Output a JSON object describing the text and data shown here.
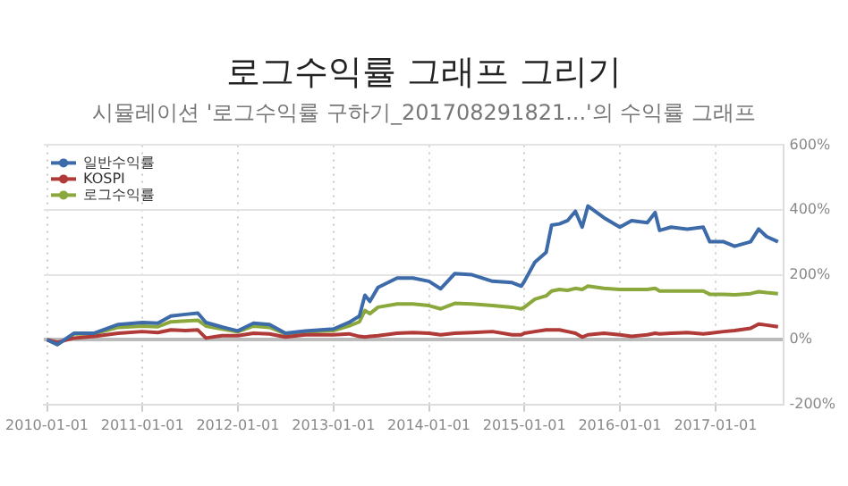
{
  "chart_data": {
    "type": "line",
    "title": "로그수익률 그래프 그리기",
    "subtitle": "시뮬레이션 '로그수익률 구하기_201708291821...'의 수익률 그래프",
    "x": [
      "2010-01-01",
      "2010-02-10",
      "2010-04-15",
      "2010-07-01",
      "2010-10-01",
      "2011-01-01",
      "2011-03-01",
      "2011-04-20",
      "2011-06-15",
      "2011-08-01",
      "2011-09-01",
      "2011-11-01",
      "2012-01-01",
      "2012-03-01",
      "2012-05-01",
      "2012-07-01",
      "2012-09-15",
      "2013-01-01",
      "2013-03-01",
      "2013-04-10",
      "2013-05-01",
      "2013-05-20",
      "2013-06-20",
      "2013-09-01",
      "2013-11-01",
      "2014-01-01",
      "2014-02-15",
      "2014-04-10",
      "2014-06-15",
      "2014-09-01",
      "2014-11-15",
      "2014-12-20",
      "2015-01-01",
      "2015-02-10",
      "2015-03-25",
      "2015-04-15",
      "2015-05-15",
      "2015-06-15",
      "2015-07-15",
      "2015-08-10",
      "2015-09-01",
      "2015-11-01",
      "2016-01-01",
      "2016-02-15",
      "2016-04-15",
      "2016-05-15",
      "2016-06-01",
      "2016-07-15",
      "2016-09-15",
      "2016-11-15",
      "2016-12-10",
      "2017-02-01",
      "2017-03-15",
      "2017-05-15",
      "2017-06-15",
      "2017-07-15",
      "2017-08-28"
    ],
    "series": [
      {
        "name": "일반수익률",
        "color": "#3d6aa8",
        "values": [
          0,
          -15,
          20,
          20,
          47,
          53,
          51,
          73,
          78,
          82,
          53,
          39,
          27,
          51,
          47,
          20,
          27,
          33,
          53,
          73,
          137,
          118,
          161,
          190,
          190,
          180,
          157,
          204,
          200,
          180,
          176,
          165,
          180,
          239,
          269,
          353,
          357,
          367,
          396,
          347,
          412,
          376,
          347,
          367,
          361,
          392,
          337,
          347,
          341,
          347,
          302,
          302,
          288,
          302,
          341,
          318,
          302
        ]
      },
      {
        "name": "KOSPI",
        "color": "#b03a38",
        "values": [
          0,
          -8,
          5,
          10,
          20,
          25,
          22,
          30,
          28,
          30,
          5,
          12,
          12,
          20,
          18,
          8,
          15,
          15,
          18,
          10,
          8,
          10,
          12,
          20,
          22,
          20,
          15,
          20,
          22,
          25,
          15,
          15,
          20,
          25,
          30,
          30,
          30,
          25,
          20,
          8,
          15,
          20,
          15,
          10,
          15,
          20,
          18,
          20,
          22,
          18,
          20,
          25,
          28,
          35,
          48,
          45,
          40
        ]
      },
      {
        "name": "로그수익률",
        "color": "#8aa83c",
        "values": [
          0,
          -15,
          18,
          18,
          38,
          42,
          40,
          55,
          58,
          60,
          42,
          33,
          24,
          42,
          38,
          18,
          24,
          28,
          42,
          55,
          90,
          80,
          100,
          110,
          110,
          105,
          95,
          112,
          110,
          105,
          100,
          95,
          100,
          125,
          135,
          150,
          155,
          152,
          158,
          155,
          165,
          158,
          155,
          155,
          155,
          158,
          150,
          150,
          150,
          150,
          140,
          140,
          138,
          142,
          148,
          145,
          142
        ]
      }
    ],
    "xlim": [
      "2009-12-20",
      "2017-09-20"
    ],
    "xticks": [
      "2010-01-01",
      "2011-01-01",
      "2012-01-01",
      "2013-01-01",
      "2014-01-01",
      "2015-01-01",
      "2016-01-01",
      "2017-01-01"
    ],
    "ylim": [
      -200,
      600
    ],
    "yticks": [
      {
        "value": -200,
        "label": "-200%"
      },
      {
        "value": 0,
        "label": "0%"
      },
      {
        "value": 200,
        "label": "200%"
      },
      {
        "value": 400,
        "label": "400%"
      },
      {
        "value": 600,
        "label": "600%"
      }
    ],
    "grid": true,
    "legend": "top left"
  }
}
